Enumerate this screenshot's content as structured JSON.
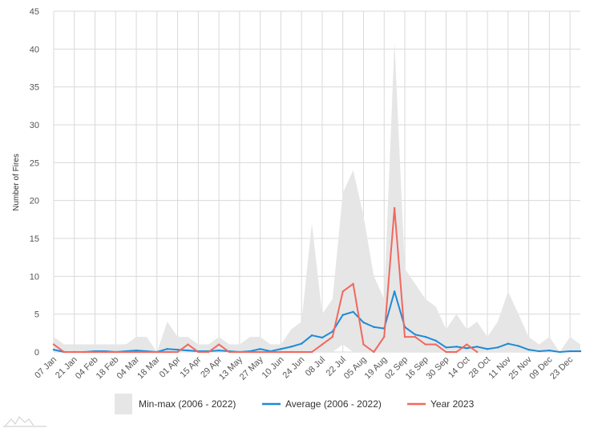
{
  "chart_data": {
    "type": "line",
    "ylabel": "Number of Fires",
    "ylim": [
      0,
      45
    ],
    "yticks": [
      0,
      5,
      10,
      15,
      20,
      25,
      30,
      35,
      40,
      45
    ],
    "x": [
      "07 Jan",
      "14 Jan",
      "21 Jan",
      "28 Jan",
      "04 Feb",
      "11 Feb",
      "18 Feb",
      "25 Feb",
      "04 Mar",
      "11 Mar",
      "18 Mar",
      "25 Mar",
      "01 Apr",
      "08 Apr",
      "15 Apr",
      "22 Apr",
      "29 Apr",
      "06 May",
      "13 May",
      "20 May",
      "27 May",
      "03 Jun",
      "10 Jun",
      "17 Jun",
      "24 Jun",
      "01 Jul",
      "08 Jul",
      "15 Jul",
      "22 Jul",
      "29 Jul",
      "05 Aug",
      "12 Aug",
      "19 Aug",
      "26 Aug",
      "02 Sep",
      "09 Sep",
      "16 Sep",
      "23 Sep",
      "30 Sep",
      "07 Oct",
      "14 Oct",
      "21 Oct",
      "28 Oct",
      "04 Nov",
      "11 Nov",
      "18 Nov",
      "25 Nov",
      "02 Dec",
      "09 Dec",
      "16 Dec",
      "23 Dec",
      "30 Dec"
    ],
    "tick_labels": [
      "07 Jan",
      "21 Jan",
      "04 Feb",
      "18 Feb",
      "04 Mar",
      "18 Mar",
      "01 Apr",
      "15 Apr",
      "29 Apr",
      "13 May",
      "27 May",
      "10 Jun",
      "24 Jun",
      "08 Jul",
      "22 Jul",
      "05 Aug",
      "19 Aug",
      "02 Sep",
      "16 Sep",
      "30 Sep",
      "14 Oct",
      "28 Oct",
      "11 Nov",
      "25 Nov",
      "09 Dec",
      "23 Dec"
    ],
    "series": [
      {
        "name": "Min-max (2006 - 2022)",
        "kind": "range",
        "color": "#e6e6e6",
        "min": [
          0,
          0,
          0,
          0,
          0,
          0,
          0,
          0,
          0,
          0,
          0,
          0,
          0,
          0,
          0,
          0,
          0,
          0,
          0,
          0,
          0,
          0,
          0,
          0,
          0,
          0,
          0,
          0,
          1,
          0,
          0,
          0,
          0,
          0,
          0,
          0,
          0,
          0,
          0,
          0,
          0,
          0,
          0,
          0,
          0,
          0,
          0,
          0,
          0,
          0,
          0,
          0
        ],
        "max": [
          2,
          1,
          1,
          1,
          1,
          1,
          1,
          1,
          2,
          2,
          0,
          4,
          2,
          2,
          1,
          1,
          2,
          1,
          1,
          2,
          2,
          1,
          1,
          3,
          4,
          17,
          5,
          7,
          21,
          24,
          18,
          10,
          7,
          41,
          11,
          9,
          7,
          6,
          3,
          5,
          3,
          4,
          2,
          4,
          8,
          5,
          2,
          1,
          2,
          0,
          2,
          1
        ]
      },
      {
        "name": "Average (2006 - 2022)",
        "kind": "line",
        "color": "#1f8ad6",
        "values": [
          0.3,
          0,
          0,
          0,
          0.1,
          0.1,
          0,
          0.1,
          0.2,
          0.1,
          0,
          0.4,
          0.3,
          0.2,
          0.1,
          0.1,
          0.2,
          0.1,
          0,
          0.1,
          0.4,
          0.1,
          0.4,
          0.7,
          1.1,
          2.2,
          1.9,
          2.7,
          4.9,
          5.3,
          3.9,
          3.3,
          3.1,
          8,
          3.3,
          2.3,
          2,
          1.5,
          0.6,
          0.7,
          0.5,
          0.7,
          0.4,
          0.6,
          1.1,
          0.8,
          0.3,
          0.1,
          0.2,
          0,
          0.1,
          0.1
        ]
      },
      {
        "name": "Year 2023",
        "kind": "line",
        "color": "#f0685e",
        "values": [
          1,
          0,
          0,
          0,
          0,
          0,
          0,
          0,
          0,
          0,
          0,
          0,
          0,
          1,
          0,
          0,
          1,
          0,
          0,
          0,
          0,
          0,
          0,
          0,
          0,
          0,
          1,
          2,
          8,
          9,
          1,
          0,
          2,
          19,
          2,
          2,
          1,
          1,
          0,
          0,
          1,
          0,
          null,
          null,
          null,
          null,
          null,
          null,
          null,
          null,
          null,
          null
        ]
      }
    ],
    "legend_position": "bottom",
    "grid": true
  }
}
